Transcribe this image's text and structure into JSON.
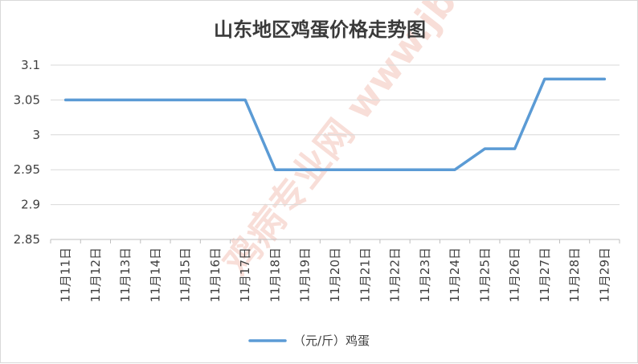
{
  "chart_data": {
    "type": "line",
    "title": "山东地区鸡蛋价格走势图",
    "xlabel": "",
    "ylabel": "",
    "categories": [
      "11月11日",
      "11月12日",
      "11月13日",
      "11月14日",
      "11月15日",
      "11月16日",
      "11月17日",
      "11月18日",
      "11月19日",
      "11月20日",
      "11月21日",
      "11月22日",
      "11月23日",
      "11月24日",
      "11月25日",
      "11月26日",
      "11月27日",
      "11月28日",
      "11月29日"
    ],
    "series": [
      {
        "name": "（元/斤）鸡蛋",
        "values": [
          3.05,
          3.05,
          3.05,
          3.05,
          3.05,
          3.05,
          3.05,
          2.95,
          2.95,
          2.95,
          2.95,
          2.95,
          2.95,
          2.95,
          2.98,
          2.98,
          3.08,
          3.08,
          3.08
        ],
        "color": "#5b9bd5"
      }
    ],
    "yticks": [
      "2.85",
      "2.9",
      "2.95",
      "3",
      "3.05",
      "3.1"
    ],
    "ylim": [
      2.85,
      3.1
    ],
    "grid": true,
    "legend_position": "bottom",
    "watermark": "鸡病专业网 www.jbzyw.com"
  }
}
